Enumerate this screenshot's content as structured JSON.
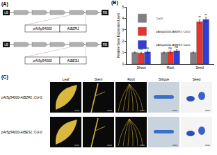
{
  "panels": {
    "A": {
      "label": "(A)",
      "constructs": [
        {
          "left_border": "LB",
          "right_border": "RB",
          "promoter": "pAt5g54000",
          "gene": "AtBZR1"
        },
        {
          "left_border": "LB",
          "right_border": "RB",
          "promoter": "pAt5g54000",
          "gene": "AtBES1"
        }
      ]
    },
    "B": {
      "label": "(B)"
    },
    "C": {
      "label": "(C)",
      "columns": [
        "Leaf",
        "Stem",
        "Root",
        "Silique",
        "Seed"
      ],
      "rows": [
        "pAt5g54000-AtBZR1::Col-0",
        "pAt5g54000-AtBES1::Col-0"
      ]
    }
  },
  "chart_data": {
    "type": "bar",
    "y_label": "Relative Gene Expression Level",
    "categories": [
      "Shoot",
      "Root",
      "Seed"
    ],
    "series": [
      {
        "name": "Col-0",
        "color": "#808080",
        "values": [
          1.0,
          1.0,
          1.0
        ],
        "error": [
          0.05,
          0.05,
          0.05
        ]
      },
      {
        "name": "pAt5g54000-AtBZR1::Col-0",
        "color": "#e8322e",
        "values": [
          0.95,
          1.05,
          3.7
        ],
        "error": [
          0.08,
          0.1,
          0.15
        ],
        "labels": [
          "ns",
          "ns",
          "**"
        ]
      },
      {
        "name": "pAt5g54000-AtBES1::Col-0",
        "color": "#2f3fd6",
        "values": [
          1.05,
          1.15,
          3.9
        ],
        "error": [
          0.1,
          0.1,
          0.2
        ],
        "labels": [
          "ns",
          "ns",
          "**"
        ]
      }
    ],
    "ylim": [
      0,
      5
    ],
    "yticks": [
      0,
      1,
      2,
      3,
      4,
      5
    ],
    "legend": "top-left",
    "grid": false
  }
}
